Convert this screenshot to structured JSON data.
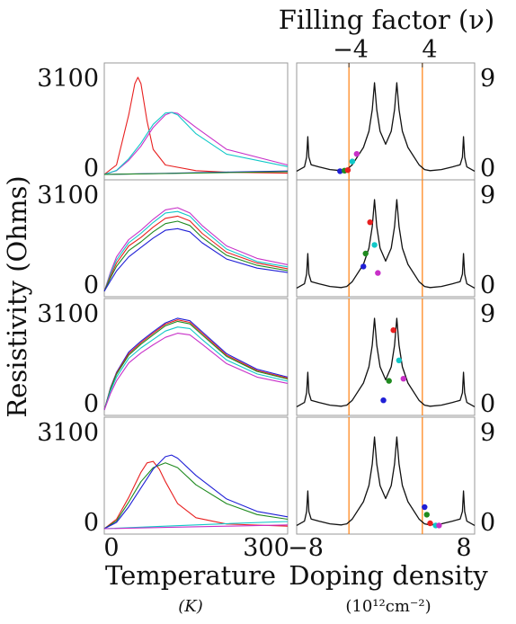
{
  "figure": {
    "top_title": "Filling factor (ν)",
    "top_ticks": [
      "−4",
      "4"
    ],
    "y_title": "Resistivity (Ohms)",
    "x_left_title": "Temperature",
    "x_left_unit": "(K)",
    "x_right_title": "Doping density",
    "x_right_unit": "(10¹²cm⁻²)",
    "x_left_ticks": [
      "0",
      "300"
    ],
    "x_right_ticks": [
      "−8",
      "8"
    ],
    "y_left_ticks": [
      "3100",
      "0"
    ],
    "y_right_ticks": [
      "9",
      "0"
    ],
    "guide_line_color": "#ff7f0e",
    "series_colors": {
      "blue": "#1f1fd6",
      "green": "#1f8a1f",
      "red": "#e82020",
      "cyan": "#10c8c8",
      "magenta": "#c830c8",
      "trace": "#111111"
    }
  },
  "chart_data": [
    {
      "type": "line",
      "title": "",
      "xlabel": "Temperature (K)",
      "ylabel": "Resistivity (Ohms)",
      "xlim": [
        0,
        300
      ],
      "ylim": [
        0,
        3100
      ],
      "series": [
        {
          "color": "red",
          "x": [
            0,
            20,
            40,
            50,
            55,
            60,
            70,
            80,
            100,
            150,
            200,
            300
          ],
          "values": [
            0,
            300,
            1900,
            2900,
            3100,
            2900,
            1700,
            800,
            300,
            120,
            70,
            40
          ]
        },
        {
          "color": "magenta",
          "x": [
            0,
            20,
            40,
            60,
            80,
            100,
            110,
            120,
            150,
            200,
            300
          ],
          "values": [
            0,
            120,
            450,
            900,
            1500,
            1900,
            1980,
            1950,
            1500,
            800,
            300
          ]
        },
        {
          "color": "cyan",
          "x": [
            0,
            20,
            40,
            60,
            80,
            100,
            110,
            120,
            150,
            200,
            300
          ],
          "values": [
            0,
            130,
            500,
            1000,
            1600,
            1960,
            1980,
            1900,
            1300,
            650,
            250
          ]
        },
        {
          "color": "blue",
          "x": [
            0,
            100,
            200,
            300
          ],
          "values": [
            0,
            35,
            75,
            110
          ]
        },
        {
          "color": "green",
          "x": [
            0,
            100,
            200,
            300
          ],
          "values": [
            0,
            30,
            60,
            90
          ]
        }
      ]
    },
    {
      "type": "line",
      "title": "",
      "xlabel": "Temperature (K)",
      "ylabel": "Resistivity (Ohms)",
      "xlim": [
        0,
        300
      ],
      "ylim": [
        0,
        3100
      ],
      "series": [
        {
          "color": "magenta",
          "x": [
            0,
            10,
            20,
            40,
            60,
            80,
            100,
            120,
            140,
            160,
            200,
            250,
            300
          ],
          "values": [
            0,
            600,
            1100,
            1650,
            1950,
            2300,
            2600,
            2670,
            2500,
            2100,
            1450,
            1050,
            850
          ]
        },
        {
          "color": "cyan",
          "x": [
            0,
            10,
            20,
            40,
            60,
            80,
            100,
            120,
            140,
            160,
            200,
            250,
            300
          ],
          "values": [
            0,
            550,
            1000,
            1550,
            1850,
            2200,
            2500,
            2550,
            2400,
            2000,
            1350,
            950,
            780
          ]
        },
        {
          "color": "red",
          "x": [
            0,
            10,
            20,
            40,
            60,
            80,
            100,
            120,
            140,
            160,
            200,
            250,
            300
          ],
          "values": [
            0,
            480,
            900,
            1450,
            1720,
            2050,
            2330,
            2400,
            2250,
            1850,
            1250,
            900,
            720
          ]
        },
        {
          "color": "green",
          "x": [
            0,
            10,
            20,
            40,
            60,
            80,
            100,
            120,
            140,
            160,
            200,
            250,
            300
          ],
          "values": [
            0,
            420,
            800,
            1300,
            1580,
            1900,
            2160,
            2240,
            2100,
            1720,
            1150,
            830,
            660
          ]
        },
        {
          "color": "blue",
          "x": [
            0,
            10,
            20,
            40,
            60,
            80,
            100,
            120,
            140,
            160,
            200,
            250,
            300
          ],
          "values": [
            0,
            330,
            650,
            1100,
            1400,
            1700,
            1950,
            2000,
            1900,
            1550,
            1030,
            740,
            600
          ]
        }
      ]
    },
    {
      "type": "line",
      "title": "",
      "xlabel": "Temperature (K)",
      "ylabel": "Resistivity (Ohms)",
      "xlim": [
        0,
        300
      ],
      "ylim": [
        0,
        3100
      ],
      "series": [
        {
          "color": "blue",
          "x": [
            0,
            10,
            20,
            40,
            60,
            80,
            100,
            120,
            140,
            160,
            200,
            250,
            300
          ],
          "values": [
            0,
            700,
            1200,
            1850,
            2200,
            2500,
            2780,
            2930,
            2850,
            2500,
            1800,
            1300,
            1050
          ]
        },
        {
          "color": "red",
          "x": [
            0,
            10,
            20,
            40,
            60,
            80,
            100,
            120,
            140,
            160,
            200,
            250,
            300
          ],
          "values": [
            0,
            680,
            1170,
            1800,
            2150,
            2450,
            2740,
            2880,
            2800,
            2450,
            1750,
            1260,
            1020
          ]
        },
        {
          "color": "green",
          "x": [
            0,
            10,
            20,
            40,
            60,
            80,
            100,
            120,
            140,
            160,
            200,
            250,
            300
          ],
          "values": [
            0,
            660,
            1140,
            1750,
            2100,
            2400,
            2690,
            2830,
            2750,
            2400,
            1710,
            1230,
            990
          ]
        },
        {
          "color": "cyan",
          "x": [
            0,
            10,
            20,
            40,
            60,
            80,
            100,
            120,
            140,
            160,
            200,
            250,
            300
          ],
          "values": [
            0,
            600,
            1050,
            1650,
            1980,
            2250,
            2520,
            2650,
            2600,
            2250,
            1600,
            1150,
            920
          ]
        },
        {
          "color": "magenta",
          "x": [
            0,
            10,
            20,
            40,
            60,
            80,
            100,
            120,
            140,
            160,
            200,
            250,
            300
          ],
          "values": [
            0,
            520,
            930,
            1500,
            1820,
            2080,
            2320,
            2450,
            2400,
            2100,
            1480,
            1050,
            850
          ]
        }
      ]
    },
    {
      "type": "line",
      "title": "",
      "xlabel": "Temperature (K)",
      "ylabel": "Resistivity (Ohms)",
      "xlim": [
        0,
        300
      ],
      "ylim": [
        0,
        3100
      ],
      "series": [
        {
          "color": "red",
          "x": [
            0,
            20,
            40,
            60,
            70,
            80,
            90,
            100,
            120,
            150,
            200,
            300
          ],
          "values": [
            0,
            300,
            1000,
            1800,
            2100,
            2150,
            1900,
            1500,
            800,
            350,
            150,
            80
          ]
        },
        {
          "color": "green",
          "x": [
            0,
            20,
            40,
            60,
            80,
            100,
            120,
            150,
            200,
            250,
            300
          ],
          "values": [
            0,
            250,
            850,
            1500,
            1950,
            2100,
            1950,
            1400,
            800,
            450,
            300
          ]
        },
        {
          "color": "blue",
          "x": [
            0,
            20,
            40,
            60,
            80,
            100,
            110,
            120,
            150,
            200,
            250,
            300
          ],
          "values": [
            0,
            200,
            700,
            1300,
            1900,
            2300,
            2350,
            2250,
            1700,
            950,
            550,
            380
          ]
        },
        {
          "color": "cyan",
          "x": [
            0,
            100,
            200,
            300
          ],
          "values": [
            0,
            80,
            160,
            230
          ]
        },
        {
          "color": "magenta",
          "x": [
            0,
            100,
            200,
            300
          ],
          "values": [
            0,
            40,
            80,
            120
          ]
        }
      ]
    },
    {
      "type": "line",
      "title": "",
      "xlabel": "Doping density (10¹²cm⁻²)",
      "xlim": [
        -8,
        8
      ],
      "ylim": [
        0,
        9
      ],
      "guide_lines_x": [
        -3.3,
        3.3
      ],
      "series": [
        {
          "color": "trace",
          "x": [
            -8,
            -7.3,
            -7.1,
            -7.0,
            -6.9,
            -6.7,
            -6,
            -5,
            -4,
            -3.5,
            -3,
            -2,
            -1.5,
            -1.2,
            -1.0,
            -0.8,
            -0.5,
            0,
            0.5,
            0.8,
            1.0,
            1.2,
            1.5,
            2,
            3,
            3.5,
            4,
            5,
            6,
            6.7,
            6.9,
            7.0,
            7.1,
            7.3,
            8
          ],
          "values": [
            0.3,
            0.7,
            1.6,
            3.5,
            1.6,
            0.9,
            0.7,
            0.45,
            0.35,
            0.45,
            0.9,
            2.5,
            4,
            6,
            8.5,
            6,
            4,
            2.8,
            4,
            6,
            8.5,
            6,
            4,
            2.5,
            0.9,
            0.45,
            0.35,
            0.45,
            0.7,
            0.9,
            1.6,
            3.5,
            1.6,
            0.7,
            0.3
          ]
        }
      ],
      "markers": [
        {
          "color": "blue",
          "x": -4.1,
          "y": 0.3
        },
        {
          "color": "green",
          "x": -3.7,
          "y": 0.35
        },
        {
          "color": "red",
          "x": -3.4,
          "y": 0.4
        },
        {
          "color": "cyan",
          "x": -3.0,
          "y": 1.2
        },
        {
          "color": "magenta",
          "x": -2.6,
          "y": 1.9
        }
      ]
    },
    {
      "type": "line",
      "title": "",
      "xlabel": "Doping density (10¹²cm⁻²)",
      "xlim": [
        -8,
        8
      ],
      "ylim": [
        0,
        9
      ],
      "guide_lines_x": [
        -3.3,
        3.3
      ],
      "series": [
        {
          "color": "trace",
          "x": [
            -8,
            -7.3,
            -7.1,
            -7.0,
            -6.9,
            -6.7,
            -6,
            -5,
            -4,
            -3.5,
            -3,
            -2,
            -1.5,
            -1.2,
            -1.0,
            -0.8,
            -0.5,
            0,
            0.5,
            0.8,
            1.0,
            1.2,
            1.5,
            2,
            3,
            3.5,
            4,
            5,
            6,
            6.7,
            6.9,
            7.0,
            7.1,
            7.3,
            8
          ],
          "values": [
            0.3,
            0.7,
            1.6,
            3.5,
            1.6,
            0.9,
            0.7,
            0.45,
            0.35,
            0.45,
            0.9,
            2.5,
            4,
            6,
            8.5,
            6,
            4,
            2.8,
            4,
            6,
            8.5,
            6,
            4,
            2.5,
            0.9,
            0.45,
            0.35,
            0.45,
            0.7,
            0.9,
            1.6,
            3.5,
            1.6,
            0.7,
            0.3
          ]
        }
      ],
      "markers": [
        {
          "color": "blue",
          "x": -2.0,
          "y": 2.3
        },
        {
          "color": "green",
          "x": -1.8,
          "y": 3.5
        },
        {
          "color": "red",
          "x": -1.4,
          "y": 6.4
        },
        {
          "color": "cyan",
          "x": -1.0,
          "y": 4.3
        },
        {
          "color": "magenta",
          "x": -0.7,
          "y": 1.7
        }
      ]
    },
    {
      "type": "line",
      "title": "",
      "xlabel": "Doping density (10¹²cm⁻²)",
      "xlim": [
        -8,
        8
      ],
      "ylim": [
        0,
        9
      ],
      "guide_lines_x": [
        -3.3,
        3.3
      ],
      "series": [
        {
          "color": "trace",
          "x": [
            -8,
            -7.3,
            -7.1,
            -7.0,
            -6.9,
            -6.7,
            -6,
            -5,
            -4,
            -3.5,
            -3,
            -2,
            -1.5,
            -1.2,
            -1.0,
            -0.8,
            -0.5,
            0,
            0.5,
            0.8,
            1.0,
            1.2,
            1.5,
            2,
            3,
            3.5,
            4,
            5,
            6,
            6.7,
            6.9,
            7.0,
            7.1,
            7.3,
            8
          ],
          "values": [
            0.3,
            0.7,
            1.6,
            3.5,
            1.6,
            0.9,
            0.7,
            0.45,
            0.35,
            0.45,
            0.9,
            2.5,
            4,
            6,
            8.5,
            6,
            4,
            2.8,
            4,
            6,
            8.5,
            6,
            4,
            2.5,
            0.9,
            0.45,
            0.35,
            0.45,
            0.7,
            0.9,
            1.6,
            3.5,
            1.6,
            0.7,
            0.3
          ]
        }
      ],
      "markers": [
        {
          "color": "blue",
          "x": -0.2,
          "y": 0.9
        },
        {
          "color": "green",
          "x": 0.3,
          "y": 2.7
        },
        {
          "color": "red",
          "x": 0.7,
          "y": 7.4
        },
        {
          "color": "cyan",
          "x": 1.2,
          "y": 4.6
        },
        {
          "color": "magenta",
          "x": 1.6,
          "y": 2.9
        }
      ]
    },
    {
      "type": "line",
      "title": "",
      "xlabel": "Doping density (10¹²cm⁻²)",
      "xlim": [
        -8,
        8
      ],
      "ylim": [
        0,
        9
      ],
      "guide_lines_x": [
        -3.3,
        3.3
      ],
      "series": [
        {
          "color": "trace",
          "x": [
            -8,
            -7.3,
            -7.1,
            -7.0,
            -6.9,
            -6.7,
            -6,
            -5,
            -4,
            -3.5,
            -3,
            -2,
            -1.5,
            -1.2,
            -1.0,
            -0.8,
            -0.5,
            0,
            0.5,
            0.8,
            1.0,
            1.2,
            1.5,
            2,
            3,
            3.5,
            4,
            5,
            6,
            6.7,
            6.9,
            7.0,
            7.1,
            7.3,
            8
          ],
          "values": [
            0.3,
            0.7,
            1.6,
            3.5,
            1.6,
            0.9,
            0.7,
            0.45,
            0.35,
            0.45,
            0.9,
            2.5,
            4,
            6,
            8.5,
            6,
            4,
            2.8,
            4,
            6,
            8.5,
            6,
            4,
            2.5,
            0.9,
            0.45,
            0.35,
            0.45,
            0.7,
            0.9,
            1.6,
            3.5,
            1.6,
            0.7,
            0.3
          ]
        }
      ],
      "markers": [
        {
          "color": "blue",
          "x": 3.5,
          "y": 2.0
        },
        {
          "color": "green",
          "x": 3.7,
          "y": 1.3
        },
        {
          "color": "red",
          "x": 4.0,
          "y": 0.5
        },
        {
          "color": "cyan",
          "x": 4.5,
          "y": 0.3
        },
        {
          "color": "magenta",
          "x": 4.8,
          "y": 0.3
        }
      ]
    }
  ]
}
